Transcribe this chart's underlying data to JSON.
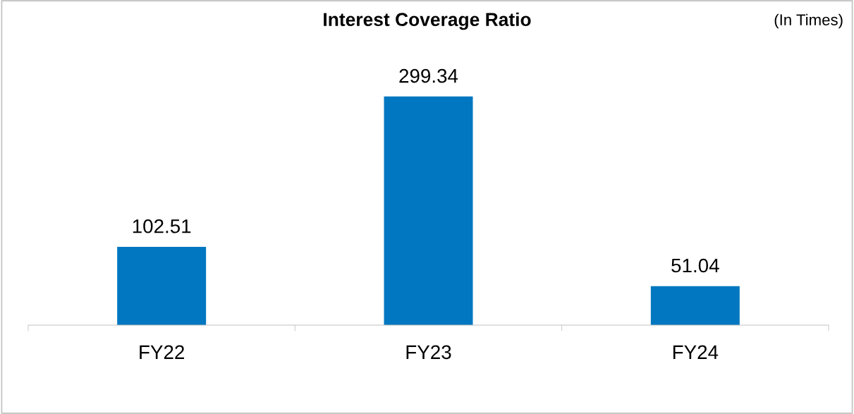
{
  "chart_data": {
    "type": "bar",
    "title": "Interest Coverage Ratio",
    "annotations": [
      "(In Times)"
    ],
    "categories": [
      "FY22",
      "FY23",
      "FY24"
    ],
    "values": [
      102.51,
      299.34,
      51.04
    ],
    "color": "#0077c0",
    "data_labels": true,
    "grid": false,
    "legend": false
  }
}
